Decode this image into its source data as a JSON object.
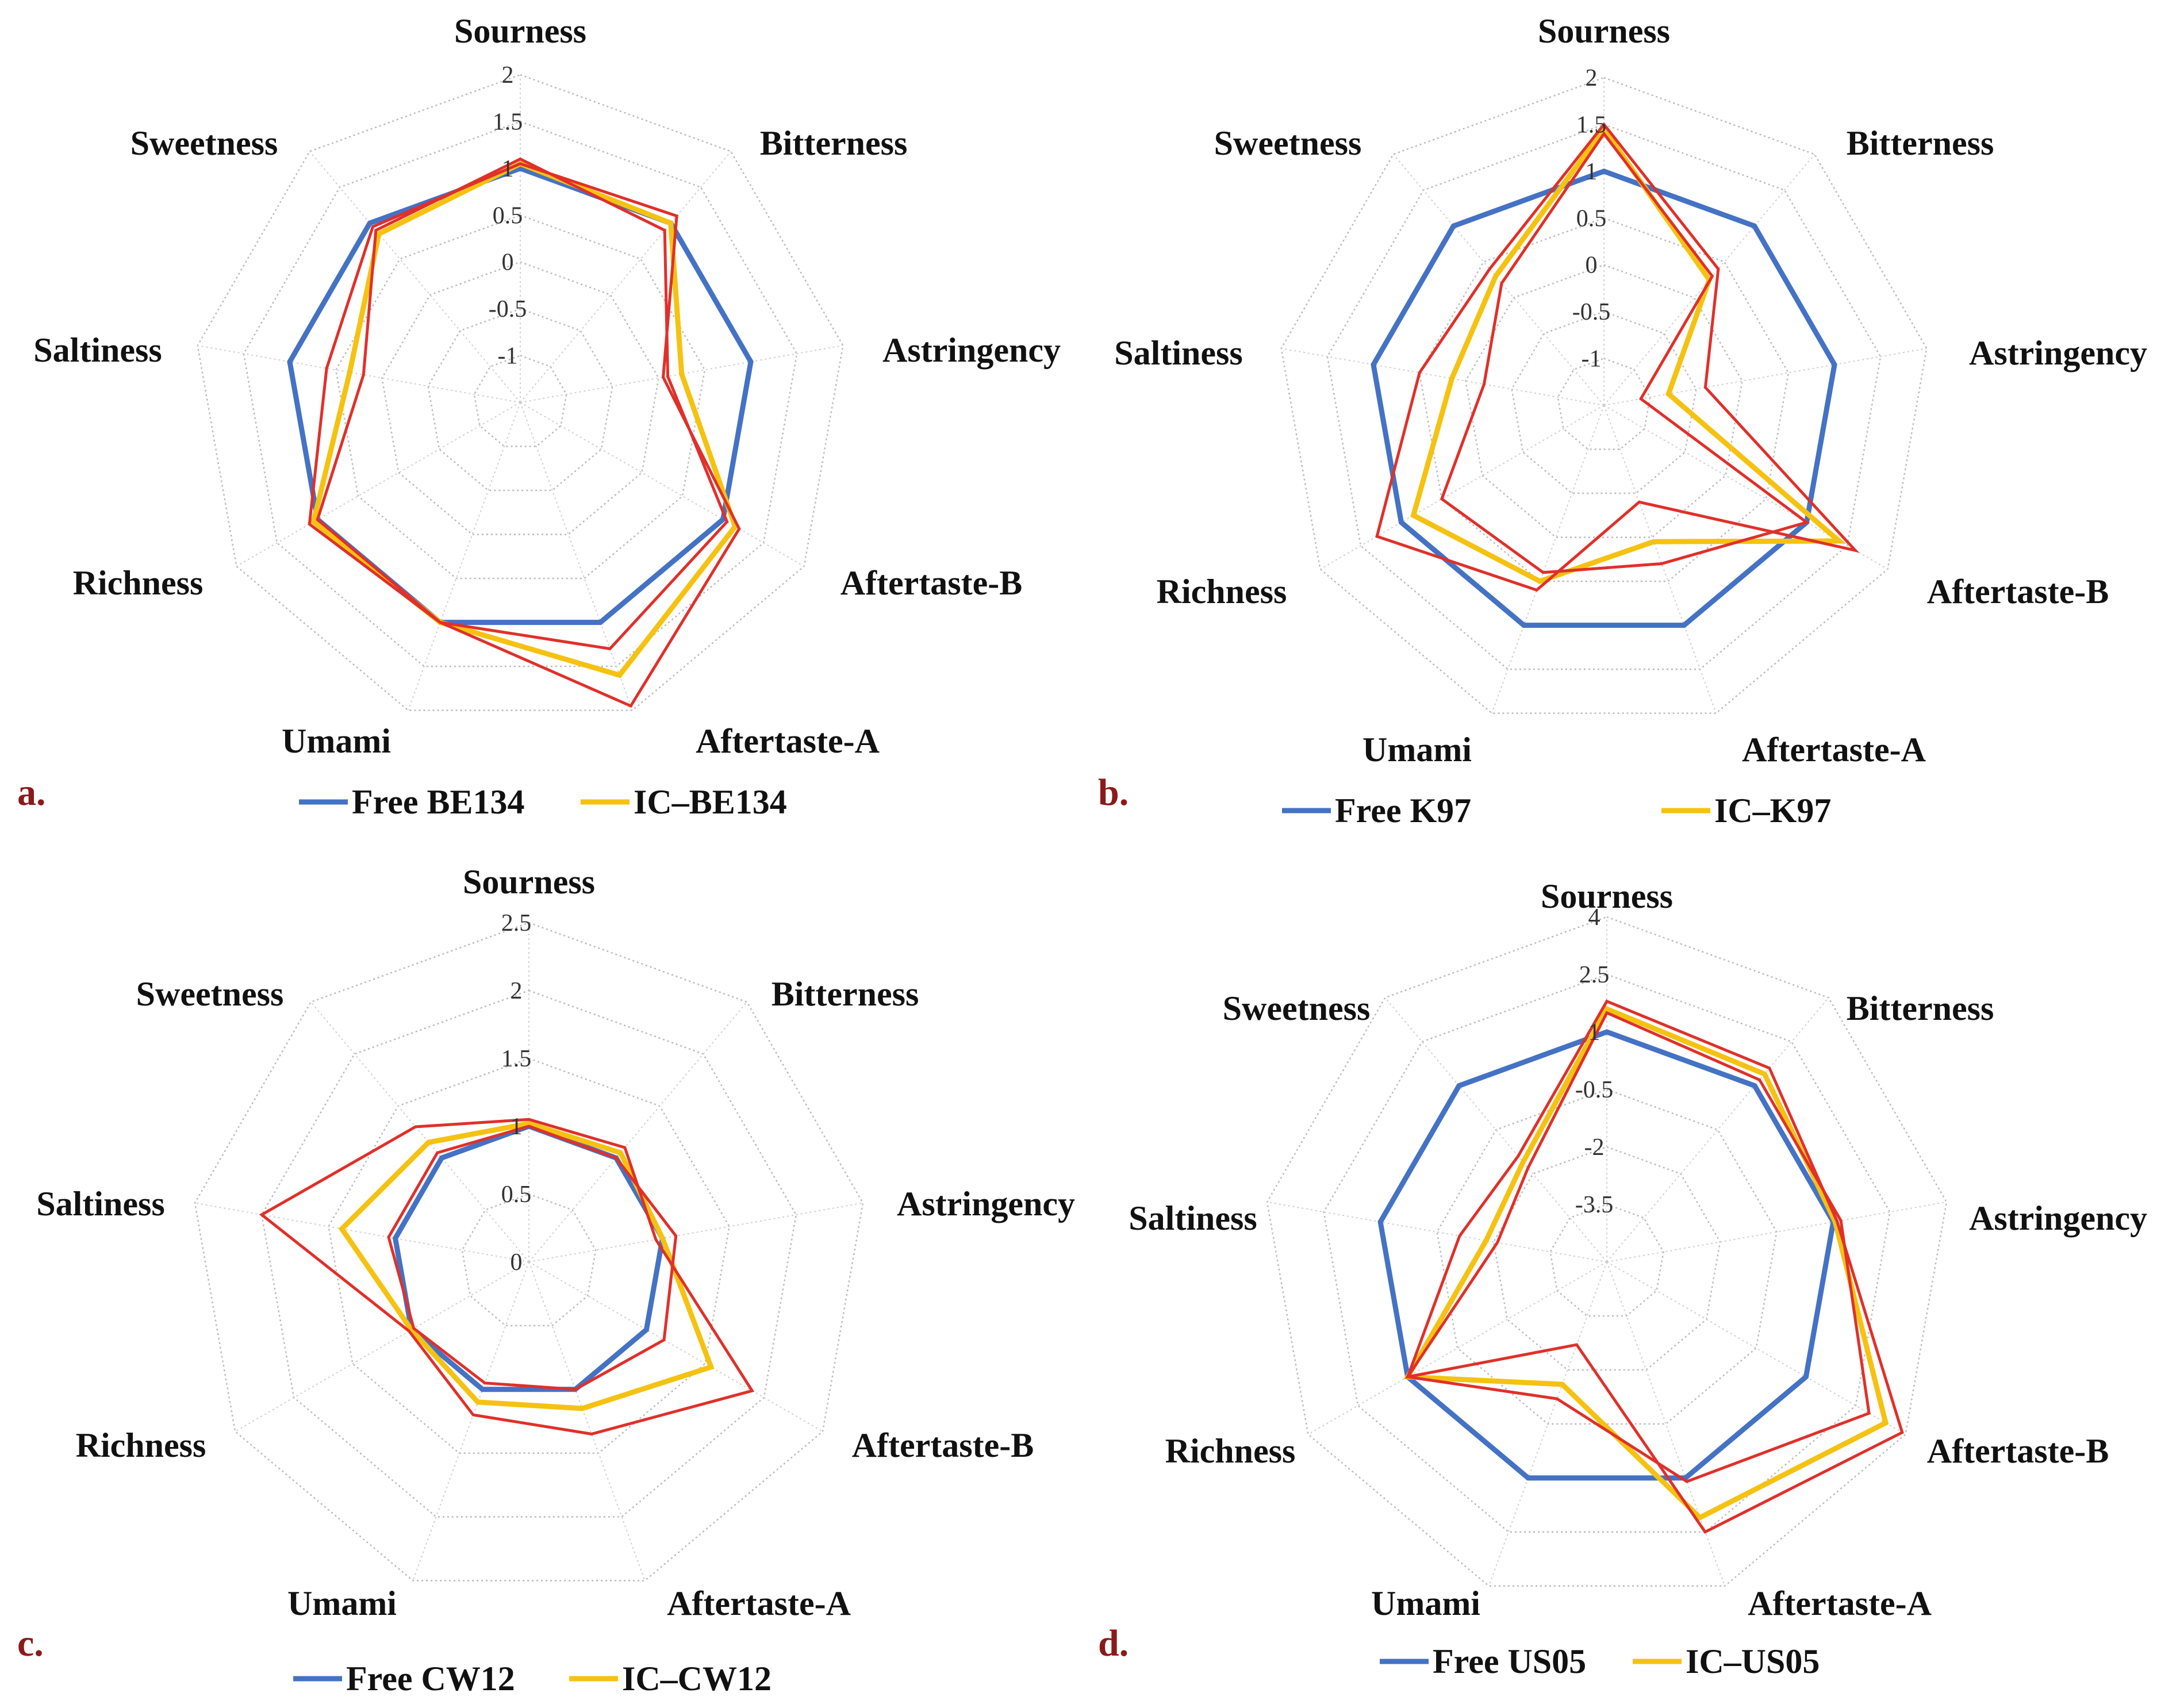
{
  "colors": {
    "free": "#4472C4",
    "ic": "#F5C211",
    "extra": "#E0302A",
    "panel_letter": "#8B1A1A"
  },
  "chart_data": [
    {
      "type": "radar",
      "panel": "a.",
      "axes": [
        "Sourness",
        "Bitterness",
        "Astringency",
        "Aftertaste-B",
        "Aftertaste-A",
        "Umami",
        "Richness",
        "Saltiness",
        "Sweetness"
      ],
      "ticks": [
        "-1",
        "-0.5",
        "0",
        "0.5",
        "1",
        "1.5",
        "2"
      ],
      "range": [
        -1.5,
        2
      ],
      "grid": true,
      "legend_position": "bottom",
      "series": [
        {
          "name": "Free BE134",
          "role": "free",
          "values": [
            1.0,
            1.0,
            1.0,
            1.0,
            1.0,
            1.0,
            1.0,
            1.0,
            1.0
          ]
        },
        {
          "name": "IC–BE134",
          "role": "ic",
          "values": [
            1.05,
            1.0,
            0.25,
            1.15,
            1.6,
            1.0,
            1.05,
            0.35,
            0.85
          ]
        },
        {
          "name": "",
          "role": "extra",
          "values": [
            1.05,
            1.1,
            0.05,
            1.2,
            1.95,
            1.0,
            1.1,
            0.6,
            0.95
          ]
        },
        {
          "name": "",
          "role": "extra",
          "values": [
            1.1,
            0.9,
            0.1,
            1.05,
            1.3,
            1.0,
            1.0,
            0.2,
            0.9
          ]
        }
      ]
    },
    {
      "type": "radar",
      "panel": "b.",
      "axes": [
        "Sourness",
        "Bitterness",
        "Astringency",
        "Aftertaste-B",
        "Aftertaste-A",
        "Umami",
        "Richness",
        "Saltiness",
        "Sweetness"
      ],
      "ticks": [
        "-1",
        "-0.5",
        "0",
        "0.5",
        "1",
        "1.5",
        "2"
      ],
      "range": [
        -1.5,
        2
      ],
      "grid": true,
      "legend_position": "bottom",
      "series": [
        {
          "name": "Free K97",
          "role": "free",
          "values": [
            1.0,
            1.0,
            1.0,
            1.0,
            1.0,
            1.0,
            1.0,
            1.0,
            1.0
          ]
        },
        {
          "name": "IC–K97",
          "role": "ic",
          "values": [
            1.45,
            0.25,
            -0.8,
            1.4,
            0.05,
            0.5,
            0.85,
            0.15,
            0.3
          ]
        },
        {
          "name": "",
          "role": "extra",
          "values": [
            1.5,
            0.4,
            -0.4,
            1.6,
            -0.4,
            0.6,
            1.3,
            0.5,
            0.4
          ]
        },
        {
          "name": "",
          "role": "extra",
          "values": [
            1.4,
            0.3,
            -1.1,
            1.0,
            0.3,
            0.4,
            0.5,
            -0.2,
            0.2
          ]
        }
      ]
    },
    {
      "type": "radar",
      "panel": "c.",
      "axes": [
        "Sourness",
        "Bitterness",
        "Astringency",
        "Aftertaste-B",
        "Aftertaste-A",
        "Umami",
        "Richness",
        "Saltiness",
        "Sweetness"
      ],
      "ticks": [
        "0",
        "0.5",
        "1",
        "1.5",
        "2",
        "2.5"
      ],
      "range": [
        0,
        2.5
      ],
      "grid": true,
      "legend_position": "bottom",
      "series": [
        {
          "name": "Free CW12",
          "role": "free",
          "values": [
            1.0,
            1.0,
            1.0,
            1.0,
            1.0,
            1.0,
            1.0,
            1.0,
            1.0
          ]
        },
        {
          "name": "IC–CW12",
          "role": "ic",
          "values": [
            1.02,
            1.05,
            1.0,
            1.55,
            1.15,
            1.1,
            1.0,
            1.4,
            1.15
          ]
        },
        {
          "name": "",
          "role": "extra",
          "values": [
            1.05,
            1.1,
            0.95,
            1.9,
            1.35,
            1.2,
            1.02,
            2.0,
            1.3
          ]
        },
        {
          "name": "",
          "role": "extra",
          "values": [
            1.0,
            1.0,
            1.1,
            1.15,
            1.0,
            0.95,
            0.98,
            1.05,
            1.05
          ]
        }
      ]
    },
    {
      "type": "radar",
      "panel": "d.",
      "axes": [
        "Sourness",
        "Bitterness",
        "Astringency",
        "Aftertaste-B",
        "Aftertaste-A",
        "Umami",
        "Richness",
        "Saltiness",
        "Sweetness"
      ],
      "ticks": [
        "-3.5",
        "-2",
        "-0.5",
        "1",
        "2.5",
        "4"
      ],
      "range": [
        -5,
        4
      ],
      "grid": true,
      "legend_position": "bottom",
      "series": [
        {
          "name": "Free  US05",
          "role": "free",
          "values": [
            1.0,
            1.0,
            1.0,
            1.0,
            1.0,
            1.0,
            1.0,
            1.0,
            1.0
          ]
        },
        {
          "name": "IC–US05",
          "role": "ic",
          "values": [
            1.6,
            1.4,
            1.05,
            3.4,
            2.1,
            -1.6,
            1.0,
            -1.8,
            -1.6
          ]
        },
        {
          "name": "",
          "role": "extra",
          "values": [
            1.8,
            1.6,
            1.1,
            3.9,
            2.5,
            -2.7,
            1.0,
            -1.1,
            -1.4
          ]
        },
        {
          "name": "",
          "role": "extra",
          "values": [
            1.5,
            1.2,
            1.2,
            2.9,
            1.1,
            -1.2,
            1.0,
            -2.1,
            -1.8
          ]
        }
      ]
    }
  ]
}
